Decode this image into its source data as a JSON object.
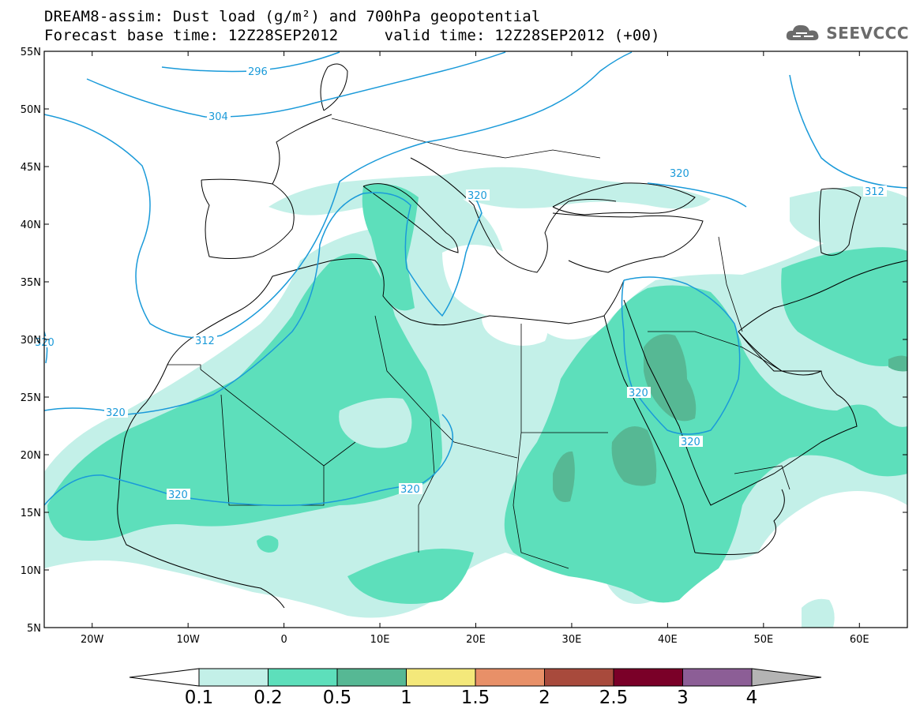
{
  "title": {
    "line1": "DREAM8-assim: Dust load (g/m²) and 700hPa geopotential",
    "line2": "Forecast base time: 12Z28SEP2012     valid time: 12Z28SEP2012 (+00)"
  },
  "logo": {
    "text": "SEEVCCC",
    "icon": "cloud-logo-icon"
  },
  "map": {
    "lon_range": [
      -25,
      65
    ],
    "lat_range": [
      5,
      55
    ],
    "lat_ticks": [
      "55N",
      "50N",
      "45N",
      "40N",
      "35N",
      "30N",
      "25N",
      "20N",
      "15N",
      "10N",
      "5N"
    ],
    "lon_ticks": [
      "20W",
      "10W",
      "0",
      "10E",
      "20E",
      "30E",
      "40E",
      "50E",
      "60E"
    ],
    "contour_labels": [
      "296",
      "304",
      "312",
      "320",
      "320",
      "312",
      "320",
      "320",
      "320",
      "320",
      "320",
      "320"
    ]
  },
  "colorbar": {
    "labels": [
      "0.1",
      "0.2",
      "0.5",
      "1",
      "1.5",
      "2",
      "2.5",
      "3",
      "4"
    ],
    "colors": [
      "#c3f0e8",
      "#5ddfbb",
      "#56b894",
      "#f4e87a",
      "#e89068",
      "#a84a3c",
      "#7a0028",
      "#8c5e96"
    ],
    "under_color": "#ffffff",
    "over_color": "#b4b4b4"
  },
  "colors": {
    "contour": "#1a9ad9",
    "coast": "#000000",
    "shade_light": "#c3f0e8",
    "shade_mid": "#5ddfbb",
    "shade_dark": "#56b894"
  }
}
